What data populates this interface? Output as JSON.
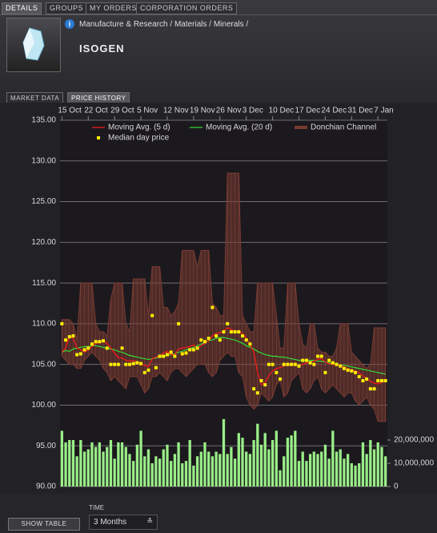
{
  "tabs": [
    "DETAILS",
    "GROUPS",
    "MY ORDERS",
    "CORPORATION ORDERS"
  ],
  "breadcrumb": "Manufacture & Research / Materials / Minerals /",
  "title": "ISOGEN",
  "subtabs": [
    "MARKET DATA",
    "PRICE HISTORY"
  ],
  "chart_data": {
    "type": "line",
    "xlim": [
      -0.5,
      86.5
    ],
    "xticks": [
      {
        "value": 0,
        "label": "15 Oct"
      },
      {
        "value": 7,
        "label": "22 Oct"
      },
      {
        "value": 14,
        "label": "29 Oct"
      },
      {
        "value": 21,
        "label": "5 Nov"
      },
      {
        "value": 28,
        "label": "12 Nov"
      },
      {
        "value": 35,
        "label": "19 Nov"
      },
      {
        "value": 42,
        "label": "26 Nov"
      },
      {
        "value": 49,
        "label": "3 Dec"
      },
      {
        "value": 56,
        "label": "10 Dec"
      },
      {
        "value": 63,
        "label": "17 Dec"
      },
      {
        "value": 70,
        "label": "24 Dec"
      },
      {
        "value": 77,
        "label": "31 Dec"
      },
      {
        "value": 84,
        "label": "7 Jan"
      }
    ],
    "ylim": [
      90,
      135
    ],
    "yticks": [
      {
        "value": 90,
        "label": "90.00"
      },
      {
        "value": 95,
        "label": "95.00"
      },
      {
        "value": 100,
        "label": "100.00"
      },
      {
        "value": 105,
        "label": "105.00"
      },
      {
        "value": 110,
        "label": "110.00"
      },
      {
        "value": 115,
        "label": "115.00"
      },
      {
        "value": 120,
        "label": "120.00"
      },
      {
        "value": 125,
        "label": "125.00"
      },
      {
        "value": 130,
        "label": "130.00"
      },
      {
        "value": 135,
        "label": "135.00"
      }
    ],
    "y2lim": [
      0,
      157600000
    ],
    "y2ticks": [
      0,
      {
        "value": 10000000,
        "label": "10,000,000"
      },
      {
        "value": 20000000,
        "label": "20,000,000"
      }
    ],
    "grid": true,
    "series": [
      {
        "name": "Moving Avg. (5 d)",
        "color": "#ff1a1a",
        "values": [
          106.5,
          107.0,
          108.5,
          108.2,
          107.0,
          106.8,
          106.5,
          106.8,
          107.2,
          107.6,
          107.7,
          107.8,
          107.6,
          107.0,
          106.4,
          105.8,
          105.8,
          105.5,
          105.4,
          105.5,
          105.3,
          105.1,
          104.9,
          104.7,
          105.7,
          105.9,
          106.0,
          106.4,
          106.6,
          106.2,
          106.2,
          106.9,
          107.0,
          107.1,
          107.2,
          107.4,
          107.0,
          107.3,
          107.6,
          107.9,
          108.5,
          108.8,
          108.9,
          109.1,
          109.5,
          109.3,
          109.1,
          109.1,
          108.8,
          108.2,
          107.5,
          106.5,
          104.0,
          102.5,
          102.8,
          103.6,
          104.2,
          104.5,
          104.6,
          104.8,
          104.9,
          105.0,
          105.0,
          104.9,
          105.0,
          105.2,
          105.3,
          105.4,
          105.6,
          105.7,
          105.3,
          105.1,
          105.0,
          105.0,
          104.9,
          104.7,
          104.5,
          104.3,
          104.2,
          104.0,
          103.6,
          103.3,
          102.9,
          102.7,
          102.6,
          102.8,
          103.0
        ]
      },
      {
        "name": "Moving Avg. (20 d)",
        "color": "#33dd33",
        "values": [
          106.5,
          106.7,
          106.6,
          106.9,
          107.0,
          107.1,
          107.2,
          107.2,
          107.3,
          107.3,
          107.2,
          107.1,
          107.0,
          106.9,
          106.8,
          106.6,
          106.5,
          106.3,
          106.1,
          106.0,
          105.9,
          105.8,
          105.7,
          105.6,
          105.7,
          105.8,
          105.9,
          106.0,
          106.1,
          106.2,
          106.3,
          106.5,
          106.6,
          106.8,
          106.9,
          107.1,
          107.3,
          107.5,
          107.7,
          107.9,
          108.0,
          108.2,
          108.3,
          108.3,
          108.2,
          108.1,
          108.0,
          107.8,
          107.6,
          107.3,
          107.1,
          106.9,
          106.6,
          106.4,
          106.2,
          106.1,
          106.0,
          106.0,
          105.9,
          105.9,
          105.8,
          105.7,
          105.6,
          105.5,
          105.5,
          105.5,
          105.5,
          105.5,
          105.4,
          105.4,
          105.3,
          105.2,
          105.1,
          105.0,
          104.9,
          104.9,
          104.8,
          104.7,
          104.6,
          104.5,
          104.4,
          104.3,
          104.2,
          104.1,
          104.0,
          103.9,
          103.8
        ]
      },
      {
        "name": "Donchian Channel",
        "color": "#7a3a32",
        "high": [
          110.5,
          110.5,
          110.5,
          110.0,
          108.0,
          115.0,
          115.0,
          115.0,
          115.0,
          110.0,
          109.0,
          109.0,
          108.5,
          113.0,
          115.0,
          115.0,
          115.0,
          110.0,
          109.0,
          115.5,
          115.5,
          115.5,
          115.5,
          111.0,
          117.0,
          117.0,
          117.0,
          112.0,
          112.0,
          111.0,
          111.5,
          112.5,
          119.0,
          119.0,
          119.0,
          119.0,
          117.0,
          119.0,
          119.0,
          119.0,
          112.5,
          112.0,
          111.0,
          111.0,
          128.5,
          128.5,
          128.5,
          128.5,
          111.0,
          110.0,
          109.0,
          109.0,
          115.0,
          115.0,
          115.0,
          115.0,
          115.0,
          111.0,
          107.0,
          107.0,
          115.0,
          115.0,
          115.0,
          110.0,
          107.5,
          107.0,
          110.0,
          110.0,
          107.0,
          106.5,
          106.5,
          106.0,
          106.0,
          107.0,
          110.0,
          110.0,
          110.0,
          106.5,
          106.0,
          105.5,
          105.0,
          104.5,
          105.0,
          109.5,
          109.5,
          109.5,
          109.5
        ],
        "low": [
          106.0,
          105.5,
          105.0,
          105.0,
          104.5,
          104.5,
          105.5,
          106.0,
          106.5,
          106.0,
          105.5,
          104.5,
          104.0,
          103.0,
          103.5,
          103.0,
          102.5,
          102.0,
          103.5,
          103.5,
          103.5,
          102.5,
          101.5,
          102.0,
          103.5,
          103.5,
          104.0,
          103.5,
          103.0,
          104.0,
          104.5,
          104.5,
          104.0,
          103.5,
          104.0,
          104.5,
          105.0,
          105.0,
          105.0,
          104.0,
          103.5,
          104.0,
          105.5,
          106.0,
          106.5,
          106.0,
          106.0,
          104.0,
          103.5,
          101.0,
          100.0,
          99.5,
          100.0,
          101.5,
          101.0,
          100.5,
          101.0,
          102.5,
          103.0,
          101.0,
          101.5,
          103.0,
          103.5,
          104.0,
          102.0,
          101.5,
          102.0,
          103.0,
          103.5,
          102.0,
          101.5,
          102.0,
          102.5,
          102.0,
          101.5,
          101.0,
          101.5,
          101.5,
          100.5,
          100.0,
          100.5,
          101.0,
          100.0,
          99.5,
          98.0,
          98.0,
          98.0
        ]
      },
      {
        "name": "Median day price",
        "color": "#ffee00",
        "values": [
          110.0,
          108.0,
          108.4,
          108.5,
          106.2,
          106.3,
          106.8,
          107.0,
          107.5,
          107.8,
          107.8,
          107.9,
          107.0,
          105.0,
          105.0,
          105.0,
          107.0,
          105.0,
          105.0,
          105.1,
          105.2,
          105.1,
          104.0,
          104.3,
          111.0,
          104.6,
          106.0,
          106.0,
          106.2,
          106.5,
          106.0,
          110.0,
          106.3,
          106.4,
          106.8,
          106.8,
          107.0,
          108.0,
          107.8,
          108.2,
          112.0,
          108.5,
          108.0,
          109.0,
          110.0,
          109.0,
          109.0,
          109.0,
          108.5,
          108.0,
          107.5,
          102.0,
          101.5,
          103.0,
          102.5,
          105.0,
          105.0,
          104.0,
          103.2,
          105.0,
          105.0,
          105.0,
          105.0,
          104.8,
          105.5,
          105.5,
          105.2,
          105.0,
          106.0,
          106.0,
          104.0,
          105.5,
          105.2,
          105.0,
          104.8,
          104.5,
          104.3,
          104.2,
          104.0,
          103.5,
          103.0,
          103.2,
          102.0,
          102.0,
          103.0,
          103.0,
          103.0
        ]
      }
    ],
    "volume": {
      "axis": "y2",
      "color": "#9aee88",
      "values": [
        24000000,
        19000000,
        20000000,
        20000000,
        13000000,
        20000000,
        15000000,
        16000000,
        19000000,
        17000000,
        19000000,
        15000000,
        17000000,
        20000000,
        12000000,
        19000000,
        19000000,
        17000000,
        14000000,
        11000000,
        18000000,
        24000000,
        13000000,
        16000000,
        10000000,
        13000000,
        12000000,
        16000000,
        18000000,
        11000000,
        14000000,
        19000000,
        10000000,
        11000000,
        20000000,
        9000000,
        13000000,
        15000000,
        19000000,
        15000000,
        13000000,
        15000000,
        14000000,
        29000000,
        14000000,
        17000000,
        12000000,
        23000000,
        21000000,
        15000000,
        14000000,
        20000000,
        27000000,
        18000000,
        23000000,
        16000000,
        20000000,
        24000000,
        7000000,
        13000000,
        21000000,
        22000000,
        24000000,
        11000000,
        15000000,
        11000000,
        14000000,
        15000000,
        14000000,
        15000000,
        18000000,
        12000000,
        24000000,
        15000000,
        16000000,
        12000000,
        14000000,
        10000000,
        9000000,
        10000000,
        19000000,
        14000000,
        20000000,
        16000000,
        19000000,
        17000000,
        13000000
      ]
    }
  },
  "controls": {
    "button": "SHOW TABLE",
    "time_label": "TIME",
    "time_value": "3 Months"
  }
}
